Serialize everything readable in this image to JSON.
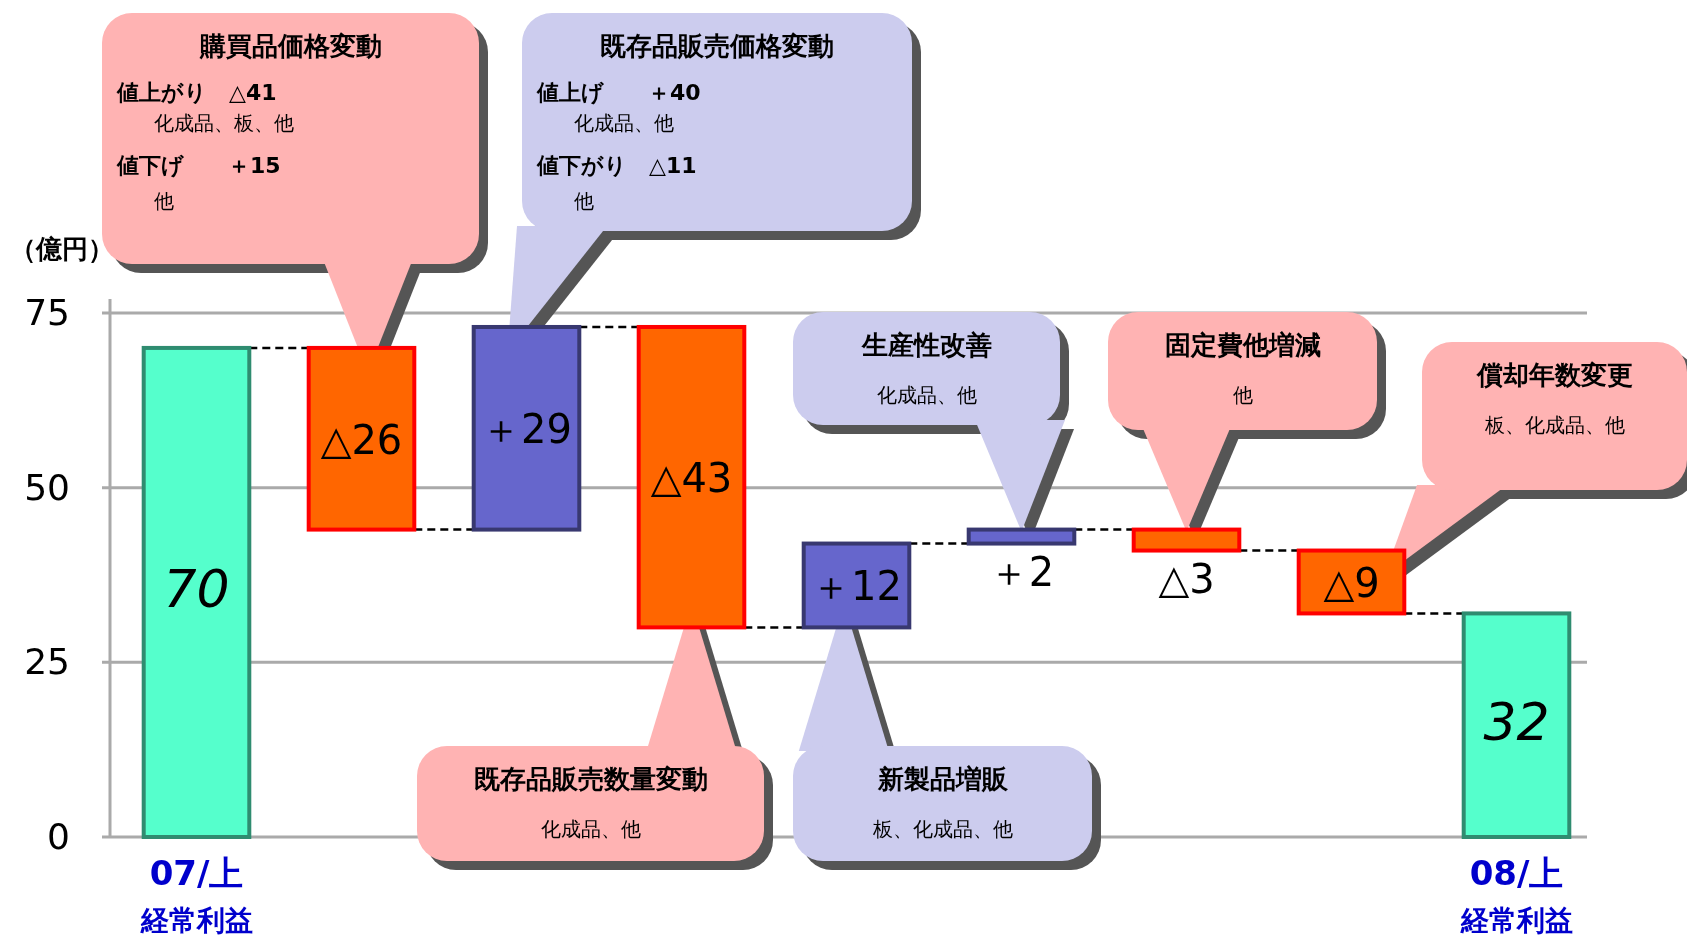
{
  "chart_data": {
    "type": "bar",
    "ylabel": "（億円）",
    "categories": [
      "07/上経常利益",
      null,
      null,
      null,
      null,
      null,
      null,
      null,
      "08/上経常利益"
    ],
    "values": [
      70,
      -26,
      29,
      -43,
      12,
      2,
      -3,
      -9,
      32
    ],
    "base": [
      0,
      70,
      44,
      73,
      30,
      42,
      44,
      41,
      0
    ],
    "colors": [
      "#55ffcc",
      "#ff6600",
      "#6666cc",
      "#ff6600",
      "#6666cc",
      "#6666cc",
      "#ff6600",
      "#ff6600",
      "#55ffcc"
    ],
    "value_labels": [
      "70",
      "△26",
      "＋29",
      "△43",
      "＋12",
      "＋2",
      "△3",
      "△9",
      "32"
    ],
    "ylim": [
      0,
      77
    ],
    "yticks": [
      0,
      25,
      50,
      75
    ],
    "grid": "y",
    "annotations": [
      "購買品価格変動",
      "値上がり　△41",
      "化成品、板、他",
      "値下げ　　＋15",
      "他",
      "既存品販売価格変動",
      "値上げ　　＋40",
      "化成品、他",
      "値下がり　△11",
      "他",
      "既存品販売数量変動",
      "化成品、他",
      "新製品増販",
      "板、化成品、他",
      "生産性改善",
      "化成品、他",
      "固定費他増減",
      "他",
      "償却年数変更",
      "板、化成品、他"
    ]
  }
}
